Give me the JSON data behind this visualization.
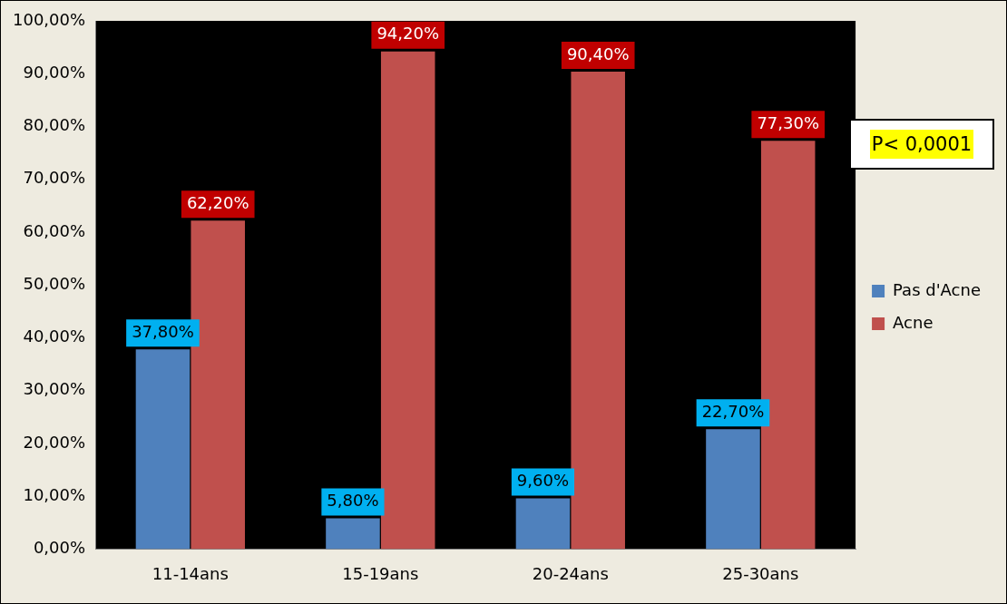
{
  "chart_data": {
    "type": "bar",
    "categories": [
      "11-14ans",
      "15-19ans",
      "20-24ans",
      "25-30ans"
    ],
    "series": [
      {
        "name": "Pas d'Acne",
        "color": "#4f81bd",
        "values": [
          37.8,
          5.8,
          9.6,
          22.7
        ],
        "value_labels": [
          "37,80%",
          "5,80%",
          "9,60%",
          "22,70%"
        ]
      },
      {
        "name": "Acne",
        "color": "#c0504d",
        "values": [
          62.2,
          94.2,
          90.4,
          77.3
        ],
        "value_labels": [
          "62,20%",
          "94,20%",
          "90,40%",
          "77,30%"
        ]
      }
    ],
    "ylim": [
      0,
      100
    ],
    "yticks": [
      {
        "value": 0,
        "label": "0,00%"
      },
      {
        "value": 10,
        "label": "10,00%"
      },
      {
        "value": 20,
        "label": "20,00%"
      },
      {
        "value": 30,
        "label": "30,00%"
      },
      {
        "value": 40,
        "label": "40,00%"
      },
      {
        "value": 50,
        "label": "50,00%"
      },
      {
        "value": 60,
        "label": "60,00%"
      },
      {
        "value": 70,
        "label": "70,00%"
      },
      {
        "value": 80,
        "label": "80,00%"
      },
      {
        "value": 90,
        "label": "90,00%"
      },
      {
        "value": 100,
        "label": "100,00%"
      }
    ],
    "grid": false,
    "legend": "right",
    "annotations": [
      "P< 0,0001"
    ]
  }
}
